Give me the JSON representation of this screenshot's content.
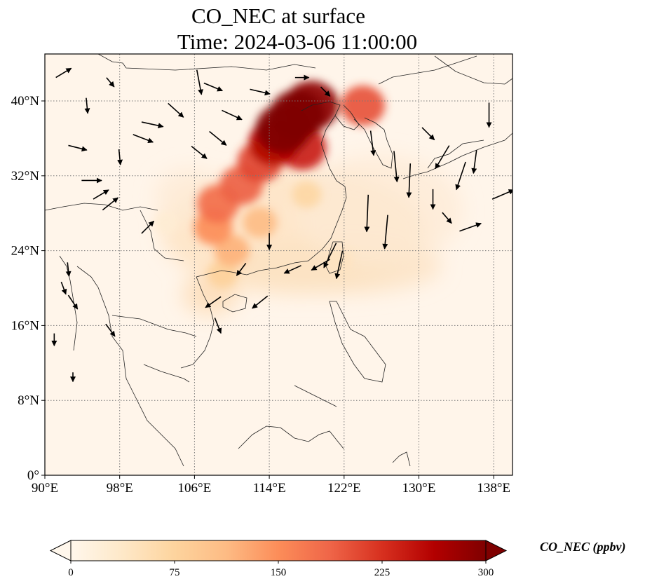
{
  "chart_data": {
    "type": "heatmap",
    "title": "CO_NEC at surface",
    "subtitle": "Time: 2024-03-06 11:00:00",
    "variable": "CO_NEC",
    "level": "surface",
    "time": "2024-03-06 11:00:00",
    "xlabel": "",
    "ylabel": "",
    "lon_range": [
      90,
      140
    ],
    "lat_range": [
      0,
      45
    ],
    "x_ticks": [
      90,
      98,
      106,
      114,
      122,
      130,
      138
    ],
    "x_tick_labels": [
      "90°E",
      "98°E",
      "106°E",
      "114°E",
      "122°E",
      "130°E",
      "138°E"
    ],
    "y_ticks": [
      0,
      8,
      16,
      24,
      32,
      40
    ],
    "y_tick_labels": [
      "0°",
      "8°N",
      "16°N",
      "24°N",
      "32°N",
      "40°N"
    ],
    "grid": true,
    "colormap": "OrRd",
    "colorbar": {
      "label": "CO_NEC (ppbv)",
      "range": [
        0,
        300
      ],
      "ticks": [
        0,
        75,
        150,
        225,
        300
      ],
      "tick_labels": [
        "0",
        "75",
        "150",
        "225",
        "300"
      ],
      "extend": "both",
      "placement": "bottom",
      "stops": [
        "#fff7ec",
        "#fee8c8",
        "#fdd49e",
        "#fdbb84",
        "#fc8d59",
        "#ef6548",
        "#d7301f",
        "#b30000",
        "#7f0000"
      ]
    },
    "plume_cells": [
      {
        "lon": 117.0,
        "lat": 38.5,
        "value": 300
      },
      {
        "lon": 115.5,
        "lat": 37.0,
        "value": 300
      },
      {
        "lon": 118.5,
        "lat": 39.5,
        "value": 290
      },
      {
        "lon": 114.5,
        "lat": 35.5,
        "value": 260
      },
      {
        "lon": 117.5,
        "lat": 35.0,
        "value": 240
      },
      {
        "lon": 113.0,
        "lat": 33.5,
        "value": 210
      },
      {
        "lon": 111.0,
        "lat": 31.0,
        "value": 190
      },
      {
        "lon": 108.5,
        "lat": 29.0,
        "value": 180
      },
      {
        "lon": 108.0,
        "lat": 26.5,
        "value": 150
      },
      {
        "lon": 110.0,
        "lat": 24.0,
        "value": 120
      },
      {
        "lon": 113.0,
        "lat": 27.0,
        "value": 110
      },
      {
        "lon": 109.0,
        "lat": 21.5,
        "value": 80
      },
      {
        "lon": 118.0,
        "lat": 30.0,
        "value": 70
      },
      {
        "lon": 121.5,
        "lat": 23.0,
        "value": 45
      },
      {
        "lon": 124.0,
        "lat": 39.5,
        "value": 200
      },
      {
        "lon": 103.0,
        "lat": 27.0,
        "value": 25
      }
    ],
    "wind_vectors": [
      {
        "lon": 92.0,
        "lat": 43.0,
        "u": 1,
        "v": 0.6
      },
      {
        "lon": 97.0,
        "lat": 42.0,
        "u": 0.5,
        "v": -0.6
      },
      {
        "lon": 94.5,
        "lat": 39.5,
        "u": 0.1,
        "v": -1
      },
      {
        "lon": 93.5,
        "lat": 35.0,
        "u": 1.2,
        "v": -0.3
      },
      {
        "lon": 98.0,
        "lat": 34.0,
        "u": 0.1,
        "v": -1
      },
      {
        "lon": 95.0,
        "lat": 31.5,
        "u": 1.3,
        "v": 0
      },
      {
        "lon": 96.0,
        "lat": 30.0,
        "u": 1,
        "v": 0.6
      },
      {
        "lon": 97.0,
        "lat": 29.0,
        "u": 1,
        "v": 0.8
      },
      {
        "lon": 100.5,
        "lat": 36.0,
        "u": 1.3,
        "v": -0.5
      },
      {
        "lon": 101.5,
        "lat": 37.5,
        "u": 1.4,
        "v": -0.3
      },
      {
        "lon": 104.0,
        "lat": 39.0,
        "u": 1,
        "v": -0.9
      },
      {
        "lon": 106.5,
        "lat": 42.0,
        "u": 0.3,
        "v": -1.6
      },
      {
        "lon": 108.0,
        "lat": 41.5,
        "u": 1.2,
        "v": -0.5
      },
      {
        "lon": 110.0,
        "lat": 38.5,
        "u": 1.3,
        "v": -0.6
      },
      {
        "lon": 108.5,
        "lat": 36.0,
        "u": 1.1,
        "v": -0.9
      },
      {
        "lon": 106.5,
        "lat": 34.5,
        "u": 1,
        "v": -0.8
      },
      {
        "lon": 113.0,
        "lat": 41.0,
        "u": 1.3,
        "v": -0.3
      },
      {
        "lon": 117.5,
        "lat": 42.5,
        "u": 0.9,
        "v": 0
      },
      {
        "lon": 120.0,
        "lat": 41.0,
        "u": 0.6,
        "v": -0.6
      },
      {
        "lon": 125.0,
        "lat": 35.5,
        "u": 0.2,
        "v": -1.6
      },
      {
        "lon": 127.5,
        "lat": 33.0,
        "u": 0.2,
        "v": -2
      },
      {
        "lon": 129.0,
        "lat": 31.5,
        "u": -0.1,
        "v": -2.2
      },
      {
        "lon": 124.5,
        "lat": 28.0,
        "u": -0.1,
        "v": -2.4
      },
      {
        "lon": 126.5,
        "lat": 26.0,
        "u": -0.2,
        "v": -2.2
      },
      {
        "lon": 131.0,
        "lat": 36.5,
        "u": 0.8,
        "v": -0.8
      },
      {
        "lon": 132.5,
        "lat": 34.0,
        "u": -0.9,
        "v": -1.5
      },
      {
        "lon": 134.5,
        "lat": 32.0,
        "u": -0.6,
        "v": -1.8
      },
      {
        "lon": 136.0,
        "lat": 33.5,
        "u": -0.2,
        "v": -1.5
      },
      {
        "lon": 137.5,
        "lat": 38.5,
        "u": 0,
        "v": -1.6
      },
      {
        "lon": 139.0,
        "lat": 30.0,
        "u": 1.4,
        "v": 0.6
      },
      {
        "lon": 135.5,
        "lat": 26.5,
        "u": 1.4,
        "v": 0.5
      },
      {
        "lon": 133.0,
        "lat": 27.5,
        "u": 0.6,
        "v": -0.7
      },
      {
        "lon": 131.5,
        "lat": 29.5,
        "u": 0,
        "v": -1.3
      },
      {
        "lon": 119.5,
        "lat": 22.5,
        "u": -1.2,
        "v": -0.7
      },
      {
        "lon": 116.5,
        "lat": 22.0,
        "u": -1.1,
        "v": -0.5
      },
      {
        "lon": 120.5,
        "lat": 23.5,
        "u": -0.8,
        "v": -1.6
      },
      {
        "lon": 121.5,
        "lat": 22.5,
        "u": -0.4,
        "v": -1.8
      },
      {
        "lon": 114.0,
        "lat": 25.0,
        "u": 0,
        "v": -1.1
      },
      {
        "lon": 111.0,
        "lat": 22.0,
        "u": -0.6,
        "v": -0.8
      },
      {
        "lon": 113.0,
        "lat": 18.5,
        "u": -1,
        "v": -0.8
      },
      {
        "lon": 108.0,
        "lat": 18.5,
        "u": -1,
        "v": -0.7
      },
      {
        "lon": 101.0,
        "lat": 26.5,
        "u": 0.8,
        "v": 0.8
      },
      {
        "lon": 92.5,
        "lat": 22.0,
        "u": 0.1,
        "v": -0.9
      },
      {
        "lon": 92.0,
        "lat": 20.0,
        "u": 0.3,
        "v": -0.8
      },
      {
        "lon": 93.0,
        "lat": 18.5,
        "u": 0.6,
        "v": -0.9
      },
      {
        "lon": 97.0,
        "lat": 15.5,
        "u": 0.6,
        "v": -0.8
      },
      {
        "lon": 91.0,
        "lat": 14.5,
        "u": 0,
        "v": -0.8
      },
      {
        "lon": 108.5,
        "lat": 16.0,
        "u": 0.4,
        "v": -1
      },
      {
        "lon": 93.0,
        "lat": 10.5,
        "u": 0,
        "v": -0.6
      }
    ]
  }
}
